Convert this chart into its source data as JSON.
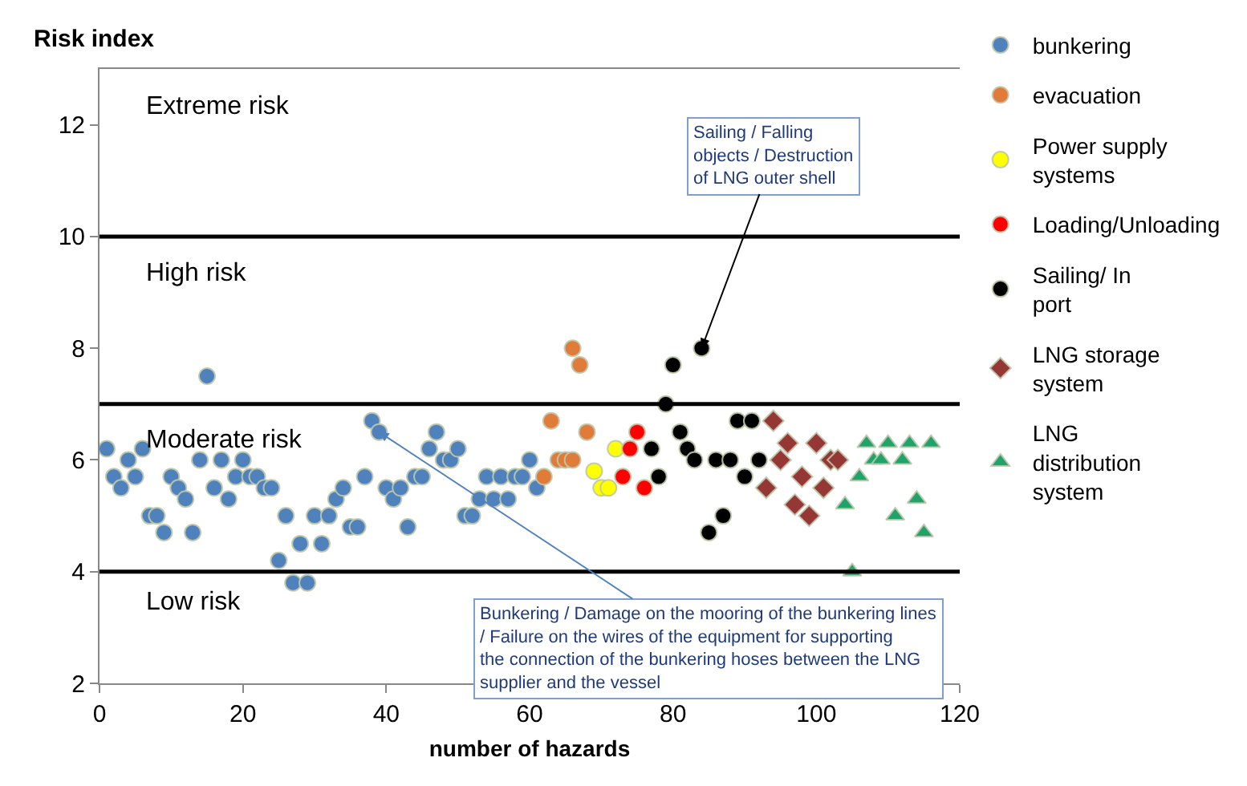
{
  "chart_data": {
    "type": "scatter",
    "xlabel": "number of hazards",
    "ylabel": "Risk index",
    "xlim": [
      0,
      120
    ],
    "xticks": [
      0,
      20,
      40,
      60,
      80,
      100,
      120
    ],
    "ylim": [
      2,
      13
    ],
    "yticks": [
      2,
      4,
      6,
      8,
      10,
      12
    ],
    "legend": "right",
    "series": [
      {
        "name": "bunkering",
        "color": "#4f81bd",
        "marker": "circle",
        "x": [
          1,
          2,
          3,
          4,
          5,
          6,
          7,
          8,
          9,
          10,
          11,
          12,
          13,
          14,
          15,
          16,
          17,
          18,
          19,
          20,
          21,
          22,
          23,
          24,
          25,
          26,
          27,
          28,
          29,
          30,
          31,
          32,
          33,
          34,
          35,
          36,
          37,
          38,
          39,
          40,
          41,
          42,
          43,
          44,
          45,
          46,
          47,
          48,
          49,
          50,
          51,
          52,
          53,
          54,
          55,
          56,
          57,
          58,
          59,
          60,
          61
        ],
        "values": [
          6.2,
          5.7,
          5.5,
          6.0,
          5.7,
          6.2,
          5.0,
          5.0,
          4.7,
          5.7,
          5.5,
          5.3,
          4.7,
          6.0,
          7.5,
          5.5,
          6.0,
          5.3,
          5.7,
          6.0,
          5.7,
          5.7,
          5.5,
          5.5,
          4.2,
          5.0,
          3.8,
          4.5,
          3.8,
          5.0,
          4.5,
          5.0,
          5.3,
          5.5,
          4.8,
          4.8,
          5.7,
          6.7,
          6.5,
          5.5,
          5.3,
          5.5,
          4.8,
          5.7,
          5.7,
          6.2,
          6.5,
          6.0,
          6.0,
          6.2,
          5.0,
          5.0,
          5.3,
          5.7,
          5.3,
          5.7,
          5.3,
          5.7,
          5.7,
          6.0,
          5.5
        ]
      },
      {
        "name": "evacuation",
        "color": "#e07b39",
        "marker": "circle",
        "x": [
          62,
          63,
          64,
          65,
          66,
          66,
          67,
          68
        ],
        "values": [
          5.7,
          6.7,
          6.0,
          6.0,
          6.0,
          8.0,
          7.7,
          6.5
        ]
      },
      {
        "name": "Power supply systems",
        "color": "#ffff00",
        "marker": "circle",
        "x": [
          69,
          70,
          71,
          72
        ],
        "values": [
          5.8,
          5.5,
          5.5,
          6.2
        ]
      },
      {
        "name": "Loading/Unloading",
        "color": "#ff0000",
        "marker": "circle",
        "x": [
          73,
          74,
          75,
          76
        ],
        "values": [
          5.7,
          6.2,
          6.5,
          5.5
        ]
      },
      {
        "name": "Sailing/ In port",
        "color": "#000000",
        "marker": "circle",
        "x": [
          77,
          78,
          79,
          80,
          81,
          82,
          83,
          84,
          85,
          86,
          87,
          88,
          89,
          90,
          91,
          92
        ],
        "values": [
          6.2,
          5.7,
          7.0,
          7.7,
          6.5,
          6.2,
          6.0,
          8.0,
          4.7,
          6.0,
          5.0,
          6.0,
          6.7,
          5.7,
          6.7,
          6.0
        ]
      },
      {
        "name": "LNG storage system",
        "color": "#953735",
        "marker": "diamond",
        "x": [
          93,
          94,
          95,
          96,
          97,
          98,
          99,
          100,
          101,
          102,
          103
        ],
        "values": [
          5.5,
          6.7,
          6.0,
          6.3,
          5.2,
          5.7,
          5.0,
          6.3,
          5.5,
          6.0,
          6.0
        ]
      },
      {
        "name": "LNG distribution system",
        "color": "#1fa36b",
        "marker": "triangle",
        "x": [
          104,
          105,
          106,
          107,
          108,
          109,
          110,
          111,
          112,
          113,
          114,
          115,
          116
        ],
        "values": [
          5.2,
          4.0,
          5.7,
          6.3,
          6.0,
          6.0,
          6.3,
          5.0,
          6.0,
          6.3,
          5.3,
          4.7,
          6.3
        ]
      }
    ],
    "ref_lines": [
      {
        "axis": "y",
        "value": 4,
        "color": "#000000"
      },
      {
        "axis": "y",
        "value": 7,
        "color": "#000000"
      },
      {
        "axis": "y",
        "value": 10,
        "color": "#000000"
      }
    ],
    "annotations": [
      "Extreme risk",
      "High risk",
      "Moderate risk",
      "Low risk",
      {
        "text": "Sailing / Falling objects / Destruction of LNG outer shell",
        "x": 84,
        "y": 8.0
      },
      {
        "text": "Bunkering / Damage on the mooring of the bunkering lines / Failure on the wires of the equipment for supporting the connection of the bunkering hoses between the LNG supplier and the vessel",
        "x": 39,
        "y": 6.5
      }
    ]
  }
}
